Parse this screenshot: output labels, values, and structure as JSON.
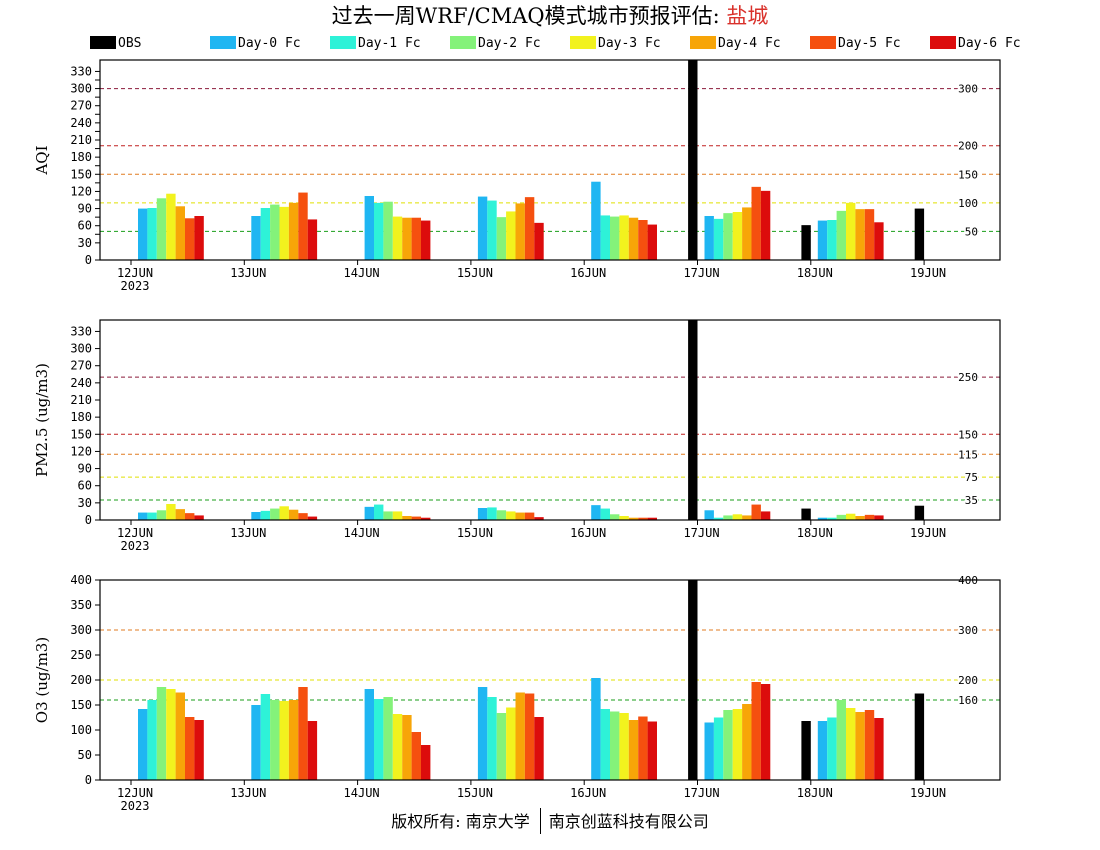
{
  "page": {
    "title_main": "过去一周WRF/CMAQ模式城市预报评估: ",
    "title_city": "盐城",
    "footer_left": "版权所有: 南京大学",
    "footer_right": "南京创蓝科技有限公司"
  },
  "chart_data": [
    {
      "type": "bar",
      "ylabel": "AQI",
      "ylim": [
        0,
        350
      ],
      "yticks": [
        0,
        30,
        45,
        60,
        75,
        90,
        105,
        120,
        135,
        150,
        165,
        180,
        195,
        210,
        225,
        240,
        255,
        270,
        285,
        300,
        315,
        330
      ],
      "yticklabels": [
        "0",
        "30",
        "",
        "60",
        "",
        "90",
        "",
        "120",
        "",
        "150",
        "",
        "180",
        "",
        "210",
        "",
        "240",
        "",
        "270",
        "",
        "300",
        "",
        "330"
      ],
      "thresholds": [
        {
          "value": 50,
          "label": "50",
          "color": "#1a9e1a"
        },
        {
          "value": 100,
          "label": "100",
          "color": "#e0e000"
        },
        {
          "value": 150,
          "label": "150",
          "color": "#e07b20"
        },
        {
          "value": 200,
          "label": "200",
          "color": "#c02020"
        },
        {
          "value": 300,
          "label": "300",
          "color": "#8b1a3a"
        }
      ],
      "obs": [
        null,
        null,
        null,
        null,
        null,
        350,
        61,
        90
      ],
      "series_values": [
        [
          90,
          77,
          112,
          111,
          137,
          77,
          69,
          null
        ],
        [
          91,
          91,
          100,
          104,
          78,
          72,
          70,
          null
        ],
        [
          108,
          97,
          102,
          75,
          76,
          82,
          86,
          null
        ],
        [
          116,
          93,
          76,
          85,
          78,
          84,
          100,
          null
        ],
        [
          94,
          100,
          74,
          99,
          74,
          92,
          89,
          null
        ],
        [
          73,
          118,
          74,
          110,
          70,
          128,
          89,
          null
        ],
        [
          77,
          71,
          69,
          65,
          62,
          121,
          66,
          null
        ]
      ]
    },
    {
      "type": "bar",
      "ylabel": "PM2.5 (ug/m3)",
      "ylim": [
        0,
        350
      ],
      "yticks": [
        0,
        30,
        60,
        90,
        120,
        150,
        180,
        210,
        240,
        270,
        300,
        330
      ],
      "yticklabels": [
        "0",
        "30",
        "60",
        "90",
        "120",
        "150",
        "180",
        "210",
        "240",
        "270",
        "300",
        "330"
      ],
      "thresholds": [
        {
          "value": 35,
          "label": "35",
          "color": "#1a9e1a"
        },
        {
          "value": 75,
          "label": "75",
          "color": "#e0e000"
        },
        {
          "value": 115,
          "label": "115",
          "color": "#e07b20"
        },
        {
          "value": 150,
          "label": "150",
          "color": "#c02020"
        },
        {
          "value": 250,
          "label": "250",
          "color": "#8b1a3a"
        }
      ],
      "obs": [
        null,
        null,
        null,
        null,
        null,
        350,
        20,
        25
      ],
      "series_values": [
        [
          13,
          14,
          23,
          21,
          26,
          17,
          4,
          null
        ],
        [
          13,
          16,
          27,
          22,
          20,
          4,
          4,
          null
        ],
        [
          17,
          20,
          15,
          17,
          10,
          8,
          9,
          null
        ],
        [
          28,
          24,
          15,
          15,
          7,
          10,
          11,
          null
        ],
        [
          19,
          18,
          7,
          13,
          4,
          8,
          7,
          null
        ],
        [
          12,
          12,
          6,
          13,
          4,
          27,
          9,
          null
        ],
        [
          8,
          6,
          4,
          5,
          4,
          15,
          8,
          null
        ]
      ]
    },
    {
      "type": "bar",
      "ylabel": "O3 (ug/m3)",
      "ylim": [
        0,
        400
      ],
      "yticks": [
        0,
        50,
        100,
        150,
        200,
        250,
        300,
        350,
        400
      ],
      "yticklabels": [
        "0",
        "50",
        "100",
        "150",
        "200",
        "250",
        "300",
        "350",
        "400"
      ],
      "thresholds": [
        {
          "value": 160,
          "label": "160",
          "color": "#1a9e1a"
        },
        {
          "value": 200,
          "label": "200",
          "color": "#e0e000"
        },
        {
          "value": 300,
          "label": "300",
          "color": "#e07b20"
        },
        {
          "value": 400,
          "label": "400",
          "color": "#c02020"
        }
      ],
      "obs": [
        null,
        null,
        null,
        null,
        null,
        400,
        118,
        173
      ],
      "series_values": [
        [
          142,
          150,
          182,
          186,
          204,
          115,
          118,
          null
        ],
        [
          160,
          172,
          162,
          166,
          142,
          125,
          125,
          null
        ],
        [
          186,
          160,
          166,
          134,
          137,
          140,
          160,
          null
        ],
        [
          182,
          158,
          132,
          145,
          134,
          142,
          144,
          null
        ],
        [
          175,
          160,
          130,
          175,
          120,
          152,
          136,
          null
        ],
        [
          126,
          186,
          96,
          173,
          127,
          196,
          140,
          null
        ],
        [
          120,
          118,
          70,
          126,
          117,
          192,
          124,
          null
        ]
      ]
    }
  ],
  "xaxis": {
    "categories": [
      "12JUN",
      "13JUN",
      "14JUN",
      "15JUN",
      "16JUN",
      "17JUN",
      "18JUN",
      "19JUN"
    ],
    "first_label_year": "2023"
  },
  "legend": [
    {
      "name": "OBS",
      "color": "#000000"
    },
    {
      "name": "Day-0 Fc",
      "color": "#1fb6f2"
    },
    {
      "name": "Day-1 Fc",
      "color": "#2ef2d8"
    },
    {
      "name": "Day-2 Fc",
      "color": "#84f27a"
    },
    {
      "name": "Day-3 Fc",
      "color": "#f2f21e"
    },
    {
      "name": "Day-4 Fc",
      "color": "#f7a508"
    },
    {
      "name": "Day-5 Fc",
      "color": "#f5500f"
    },
    {
      "name": "Day-6 Fc",
      "color": "#dc0c0c"
    }
  ]
}
